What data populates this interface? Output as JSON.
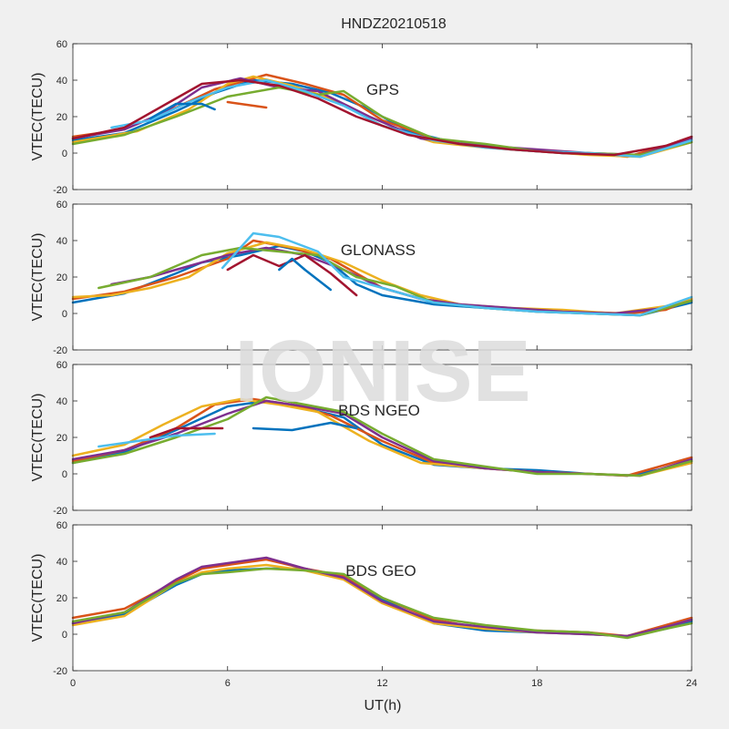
{
  "title": "HNDZ20210518",
  "watermark": "IONISE",
  "colors": [
    "#0072BD",
    "#D95319",
    "#EDB120",
    "#7E2F8E",
    "#77AC30",
    "#4DBEEE",
    "#A2142F"
  ],
  "chart_data": [
    {
      "type": "line",
      "label": "GPS",
      "ylabel": "VTEC(TECU)",
      "ylim": [
        -20,
        60
      ],
      "xlim": [
        0,
        24
      ],
      "yticks": [
        -20,
        0,
        20,
        40,
        60
      ],
      "xticks": [
        0,
        6,
        12,
        18,
        24
      ],
      "series": [
        {
          "x": [
            0,
            2,
            4,
            5.5,
            7,
            8.5,
            10,
            11.5,
            13,
            15,
            17,
            19,
            21,
            22,
            24
          ],
          "y": [
            7,
            11,
            23,
            33,
            40,
            38,
            33,
            24,
            12,
            5,
            2,
            0,
            -1,
            -1,
            7
          ]
        },
        {
          "x": [
            0,
            2,
            4,
            5.5,
            7.5,
            9,
            10.5,
            12,
            14,
            16,
            18,
            20,
            21.5,
            23,
            24
          ],
          "y": [
            9,
            13,
            25,
            35,
            43,
            38,
            32,
            18,
            8,
            4,
            1,
            0,
            -2,
            4,
            9
          ]
        },
        {
          "x": [
            0,
            2.5,
            4.5,
            6,
            7,
            8.5,
            10,
            12,
            14,
            16,
            18,
            20,
            22,
            24
          ],
          "y": [
            6,
            12,
            24,
            38,
            42,
            37,
            30,
            15,
            6,
            3,
            1,
            -1,
            -2,
            6
          ]
        },
        {
          "x": [
            0,
            2,
            3.5,
            5,
            6.5,
            8,
            9.5,
            11.5,
            13.5,
            16,
            18,
            20,
            22,
            24
          ],
          "y": [
            8,
            13,
            22,
            36,
            41,
            36,
            34,
            20,
            8,
            4,
            2,
            0,
            -1,
            8
          ]
        },
        {
          "x": [
            0,
            2,
            4,
            6,
            8,
            9.5,
            10.5,
            12,
            14,
            16,
            18,
            20,
            22,
            24
          ],
          "y": [
            5,
            10,
            20,
            31,
            36,
            32,
            34,
            20,
            8,
            5,
            1,
            0,
            -1,
            6
          ]
        },
        {
          "x": [
            1.5,
            3,
            4.5,
            6,
            7.5,
            9,
            10.5,
            12,
            14,
            16,
            18,
            20,
            22,
            24
          ],
          "y": [
            14,
            18,
            28,
            36,
            40,
            34,
            26,
            15,
            7,
            3,
            1,
            0,
            -2,
            7
          ]
        },
        {
          "x": [
            0,
            2,
            4,
            5,
            6.5,
            8,
            9.5,
            11,
            13,
            15,
            17,
            19,
            21,
            23,
            24
          ],
          "y": [
            8,
            14,
            30,
            38,
            40,
            37,
            30,
            20,
            10,
            5,
            2,
            0,
            -1,
            4,
            9
          ]
        },
        {
          "x": [
            3,
            4,
            5,
            5.5
          ],
          "y": [
            19,
            27,
            27,
            24
          ]
        },
        {
          "x": [
            6,
            7,
            7.5
          ],
          "y": [
            28,
            26,
            25
          ]
        }
      ]
    },
    {
      "type": "line",
      "label": "GLONASS",
      "ylabel": "VTEC(TECU)",
      "ylim": [
        -20,
        60
      ],
      "xlim": [
        0,
        24
      ],
      "yticks": [
        -20,
        0,
        20,
        40,
        60
      ],
      "xticks": [
        0,
        6,
        12,
        18,
        24
      ],
      "series": [
        {
          "x": [
            0,
            2,
            4,
            5,
            6.5,
            8,
            9,
            10,
            11,
            12,
            14,
            16,
            18,
            20,
            22,
            24
          ],
          "y": [
            6,
            11,
            22,
            28,
            32,
            37,
            34,
            28,
            16,
            10,
            5,
            3,
            1,
            0,
            -1,
            6
          ]
        },
        {
          "x": [
            0,
            2,
            4,
            6,
            7,
            8.5,
            10,
            11,
            12,
            13.5,
            15.5,
            17.5,
            19.5,
            21.5,
            23,
            24
          ],
          "y": [
            8,
            12,
            20,
            30,
            40,
            36,
            30,
            22,
            14,
            8,
            4,
            2,
            1,
            0,
            2,
            8
          ]
        },
        {
          "x": [
            0,
            1.5,
            3,
            4.5,
            6,
            7.5,
            9,
            10.5,
            12,
            13.5,
            15,
            17,
            19,
            21,
            23,
            24
          ],
          "y": [
            9,
            10,
            14,
            20,
            33,
            39,
            35,
            28,
            18,
            10,
            5,
            3,
            2,
            0,
            4,
            8
          ]
        },
        {
          "x": [
            1.5,
            3,
            4.5,
            6,
            7.5,
            9,
            10.5,
            12,
            13.5,
            15,
            17,
            19,
            21,
            23,
            24
          ],
          "y": [
            16,
            20,
            26,
            32,
            36,
            32,
            24,
            14,
            8,
            5,
            3,
            1,
            0,
            3,
            7
          ]
        },
        {
          "x": [
            1,
            3,
            5,
            6.5,
            8,
            9.5,
            11,
            12.5,
            14,
            16,
            18,
            20,
            22,
            24
          ],
          "y": [
            14,
            20,
            32,
            36,
            34,
            32,
            20,
            15,
            6,
            3,
            1,
            0,
            -1,
            7
          ]
        },
        {
          "x": [
            5.8,
            7,
            8,
            9.5,
            10.5,
            12,
            14,
            16,
            18,
            20,
            22,
            24
          ],
          "y": [
            25,
            44,
            42,
            34,
            20,
            14,
            6,
            3,
            1,
            0,
            -1,
            9
          ]
        },
        {
          "x": [
            6,
            7,
            8,
            9,
            10,
            11
          ],
          "y": [
            24,
            32,
            26,
            32,
            22,
            10
          ]
        },
        {
          "x": [
            8,
            8.5,
            9,
            10
          ],
          "y": [
            24,
            30,
            24,
            13
          ]
        }
      ]
    },
    {
      "type": "line",
      "label": "BDS NGEO",
      "ylabel": "VTEC(TECU)",
      "ylim": [
        -20,
        60
      ],
      "xlim": [
        0,
        24
      ],
      "yticks": [
        -20,
        0,
        20,
        40,
        60
      ],
      "xticks": [
        0,
        6,
        12,
        18,
        24
      ],
      "series": [
        {
          "x": [
            0,
            2,
            4,
            6,
            7.5,
            9,
            10.5,
            12,
            14,
            16,
            18,
            20,
            21.5,
            23,
            24
          ],
          "y": [
            6,
            12,
            24,
            37,
            40,
            36,
            31,
            16,
            5,
            3,
            2,
            0,
            -1,
            3,
            7
          ]
        },
        {
          "x": [
            0,
            2,
            4,
            5.5,
            7,
            8.5,
            10,
            12,
            14,
            16,
            18,
            20,
            21.5,
            23,
            24
          ],
          "y": [
            7,
            13,
            25,
            38,
            41,
            38,
            32,
            18,
            6,
            3,
            1,
            0,
            -1,
            5,
            9
          ]
        },
        {
          "x": [
            0,
            2,
            3.5,
            5,
            6.5,
            8,
            9.5,
            11.5,
            13.5,
            16,
            18,
            20,
            22,
            24
          ],
          "y": [
            10,
            16,
            27,
            37,
            41,
            38,
            34,
            18,
            6,
            3,
            1,
            0,
            -1,
            6
          ]
        },
        {
          "x": [
            0,
            2,
            4,
            6,
            7.5,
            9,
            10.5,
            12,
            14,
            16,
            18,
            20,
            22,
            24
          ],
          "y": [
            8,
            13,
            22,
            33,
            40,
            37,
            33,
            20,
            7,
            3,
            1,
            0,
            -1,
            8
          ]
        },
        {
          "x": [
            0,
            2,
            4,
            6,
            7.5,
            9,
            10.5,
            12,
            14,
            16,
            18,
            20,
            22,
            24
          ],
          "y": [
            6,
            11,
            20,
            30,
            42,
            38,
            34,
            22,
            8,
            4,
            0,
            0,
            -1,
            7
          ]
        },
        {
          "x": [
            1,
            2.5,
            4,
            5.5
          ],
          "y": [
            15,
            18,
            21,
            22
          ]
        },
        {
          "x": [
            3,
            4,
            5,
            5.8
          ],
          "y": [
            20,
            25,
            25,
            25
          ]
        },
        {
          "x": [
            7,
            8.5,
            10,
            11
          ],
          "y": [
            25,
            24,
            28,
            25
          ]
        }
      ]
    },
    {
      "type": "line",
      "label": "BDS GEO",
      "ylabel": "VTEC(TECU)",
      "ylim": [
        -20,
        60
      ],
      "xlim": [
        0,
        24
      ],
      "yticks": [
        -20,
        0,
        20,
        40,
        60
      ],
      "xticks": [
        0,
        6,
        12,
        18,
        24
      ],
      "series": [
        {
          "x": [
            0,
            2,
            4,
            5,
            6,
            7.5,
            9,
            10.5,
            12,
            14,
            16,
            18,
            20,
            21.5,
            23,
            24
          ],
          "y": [
            6,
            11,
            27,
            33,
            35,
            36,
            36,
            31,
            19,
            6,
            2,
            1,
            0,
            -1,
            3,
            7
          ]
        },
        {
          "x": [
            0,
            2,
            4,
            5,
            6,
            7.5,
            9,
            10.5,
            12,
            14,
            16,
            18,
            20,
            21.5,
            23,
            24
          ],
          "y": [
            9,
            14,
            29,
            36,
            38,
            41,
            36,
            32,
            20,
            8,
            3,
            2,
            1,
            -1,
            5,
            9
          ]
        },
        {
          "x": [
            0,
            2,
            4,
            5,
            6,
            7.5,
            9,
            10.5,
            12,
            14,
            16,
            18,
            20,
            21.5,
            23,
            24
          ],
          "y": [
            5,
            10,
            28,
            34,
            36,
            38,
            35,
            30,
            17,
            6,
            3,
            1,
            0,
            -1,
            4,
            8
          ]
        },
        {
          "x": [
            0,
            2,
            4,
            5,
            6,
            7.5,
            9,
            10.5,
            12,
            14,
            16,
            18,
            20,
            21.5,
            23,
            24
          ],
          "y": [
            6,
            12,
            30,
            37,
            39,
            42,
            36,
            31,
            18,
            7,
            4,
            1,
            0,
            -1,
            4,
            8
          ]
        },
        {
          "x": [
            0,
            2,
            4,
            5,
            6,
            7.5,
            9,
            10.5,
            12,
            14,
            16,
            18,
            20,
            21.5,
            23,
            24
          ],
          "y": [
            7,
            12,
            28,
            33,
            34,
            36,
            35,
            33,
            20,
            9,
            5,
            2,
            1,
            -2,
            3,
            6
          ]
        }
      ]
    }
  ],
  "xlabel": "UT(h)"
}
